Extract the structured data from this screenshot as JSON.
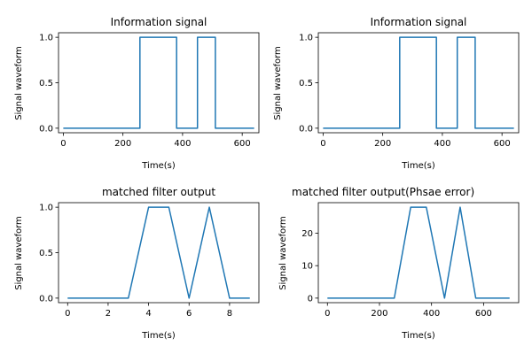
{
  "chart_data": [
    {
      "type": "line",
      "title": "Information signal",
      "xlabel": "Time(s)",
      "ylabel": "Signal waveform",
      "xlim": [
        -16,
        656
      ],
      "ylim": [
        -0.05,
        1.05
      ],
      "xticks": [
        0,
        200,
        400,
        600
      ],
      "yticks": [
        0.0,
        0.5,
        1.0
      ],
      "ytick_labels": [
        "0.0",
        "0.5",
        "1.0"
      ],
      "grid": false,
      "series": [
        {
          "color": "#1f77b4",
          "x": [
            0,
            257,
            257,
            380,
            380,
            450,
            450,
            510,
            510,
            640
          ],
          "y": [
            0,
            0,
            1,
            1,
            0,
            0,
            1,
            1,
            0,
            0
          ]
        }
      ]
    },
    {
      "type": "line",
      "title": "Information signal",
      "xlabel": "Time(s)",
      "ylabel": "Signal waveform",
      "xlim": [
        -16,
        656
      ],
      "ylim": [
        -0.05,
        1.05
      ],
      "xticks": [
        0,
        200,
        400,
        600
      ],
      "yticks": [
        0.0,
        0.5,
        1.0
      ],
      "ytick_labels": [
        "0.0",
        "0.5",
        "1.0"
      ],
      "grid": false,
      "series": [
        {
          "color": "#1f77b4",
          "x": [
            0,
            257,
            257,
            380,
            380,
            450,
            450,
            510,
            510,
            640
          ],
          "y": [
            0,
            0,
            1,
            1,
            0,
            0,
            1,
            1,
            0,
            0
          ]
        }
      ]
    },
    {
      "type": "line",
      "title": "matched filter output",
      "xlabel": "Time(s)",
      "ylabel": "Signal waveform",
      "xlim": [
        -0.45,
        9.45
      ],
      "ylim": [
        -0.05,
        1.05
      ],
      "xticks": [
        0,
        2,
        4,
        6,
        8
      ],
      "yticks": [
        0.0,
        0.5,
        1.0
      ],
      "ytick_labels": [
        "0.0",
        "0.5",
        "1.0"
      ],
      "grid": false,
      "series": [
        {
          "color": "#1f77b4",
          "x": [
            0,
            1,
            2,
            3,
            4,
            5,
            6,
            7,
            8,
            9
          ],
          "y": [
            0,
            0,
            0,
            0,
            1,
            1,
            0,
            1,
            0,
            0
          ]
        }
      ]
    },
    {
      "type": "line",
      "title": "matched filter output(Phsae error)",
      "xlabel": "Time(s)",
      "ylabel": "Signal waveform",
      "xlim": [
        -35,
        735
      ],
      "ylim": [
        -1.4,
        29.4
      ],
      "xticks": [
        0,
        200,
        400,
        600
      ],
      "yticks": [
        0,
        10,
        20
      ],
      "ytick_labels": [
        "0",
        "10",
        "20"
      ],
      "grid": false,
      "series": [
        {
          "color": "#1f77b4",
          "x": [
            0,
            257,
            320,
            380,
            450,
            510,
            570,
            700
          ],
          "y": [
            0,
            0,
            28,
            28,
            0,
            28,
            0,
            0
          ]
        }
      ]
    }
  ]
}
